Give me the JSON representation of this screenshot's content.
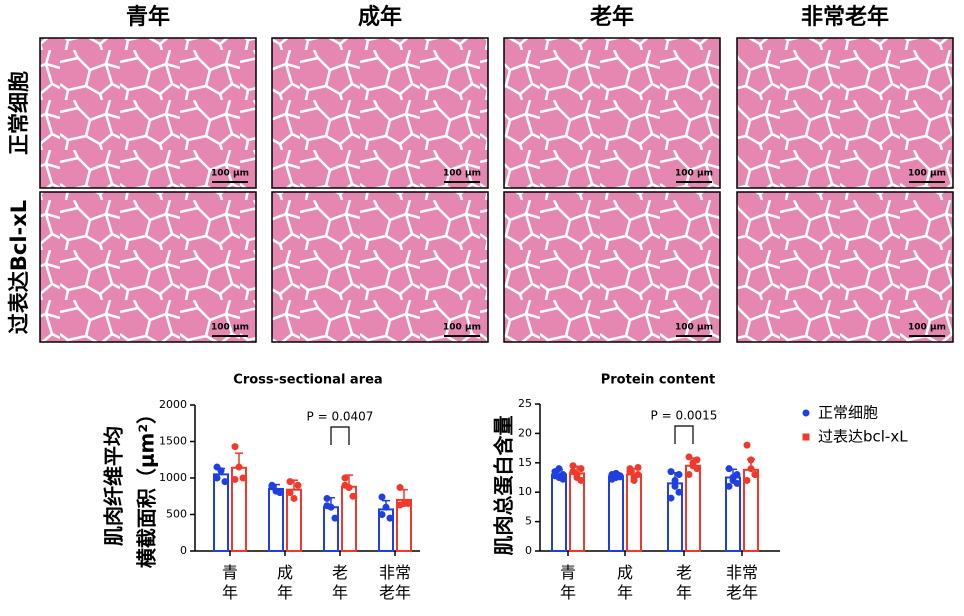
{
  "panels": {
    "columns": [
      "青年",
      "成年",
      "老年",
      "非常老年"
    ],
    "rows": [
      "正常细胞",
      "过表达Bcl-xL"
    ],
    "scale_bar": "100 μm"
  },
  "chart_data": [
    {
      "type": "bar",
      "title": "Cross-sectional area",
      "ylabel": [
        "肌肉纤维平均",
        "横截面积（μm²）"
      ],
      "categories": [
        "青年",
        "成年",
        "老年",
        "非常老年"
      ],
      "ylim": [
        0,
        2000
      ],
      "yticks": [
        0,
        500,
        1000,
        1500,
        2000
      ],
      "annotation": {
        "text": "P = 0.0407",
        "category": 2
      },
      "series": [
        {
          "name": "正常细胞",
          "color": "#1f3fe0",
          "marker": "circle",
          "values": [
            1050,
            850,
            600,
            570
          ],
          "errors": [
            80,
            60,
            130,
            120
          ],
          "points": [
            [
              1000,
              1100,
              950,
              1150
            ],
            [
              900,
              820,
              800,
              880
            ],
            [
              720,
              600,
              450,
              620
            ],
            [
              740,
              600,
              450,
              500
            ]
          ]
        },
        {
          "name": "过表达bcl-xL",
          "color": "#f0392b",
          "marker": "square",
          "values": [
            1140,
            840,
            880,
            700
          ],
          "errors": [
            200,
            130,
            160,
            140
          ],
          "points": [
            [
              1430,
              1150,
              1000,
              980
            ],
            [
              950,
              720,
              900,
              800
            ],
            [
              1000,
              870,
              750,
              900
            ],
            [
              870,
              650,
              650,
              630
            ]
          ]
        }
      ]
    },
    {
      "type": "bar",
      "title": "Protein content",
      "ylabel": [
        "肌肉总蛋白含量"
      ],
      "categories": [
        "青年",
        "成年",
        "老年",
        "非常老年"
      ],
      "ylim": [
        0,
        25
      ],
      "yticks": [
        0,
        5,
        10,
        15,
        20,
        25
      ],
      "legend": "right",
      "annotation": {
        "text": "P = 0.0015",
        "category": 2
      },
      "series": [
        {
          "name": "正常细胞",
          "color": "#1f3fe0",
          "marker": "circle",
          "values": [
            13,
            12.7,
            11.5,
            12.5
          ],
          "errors": [
            0.8,
            0.6,
            1.8,
            1.4
          ],
          "points": [
            [
              13.5,
              12.5,
              13,
              12.8,
              14,
              12.2
            ],
            [
              13,
              12.5,
              12.8,
              12.2,
              13.2,
              12.6
            ],
            [
              13.5,
              12,
              10,
              9,
              11,
              13
            ],
            [
              14,
              12,
              13,
              11,
              12.5,
              11.5
            ]
          ]
        },
        {
          "name": "过表达bcl-xL",
          "color": "#f0392b",
          "marker": "square",
          "values": [
            13.2,
            13,
            14.5,
            13.8
          ],
          "errors": [
            1.2,
            1,
            1.3,
            1.8
          ],
          "points": [
            [
              14.5,
              13,
              12,
              13.5,
              12.5,
              14
            ],
            [
              14,
              12.5,
              13,
              13.5,
              12,
              14.2
            ],
            [
              16,
              15,
              14,
              13,
              14.5,
              15.5
            ],
            [
              18,
              15.5,
              13,
              12,
              14,
              13
            ]
          ]
        }
      ]
    }
  ]
}
